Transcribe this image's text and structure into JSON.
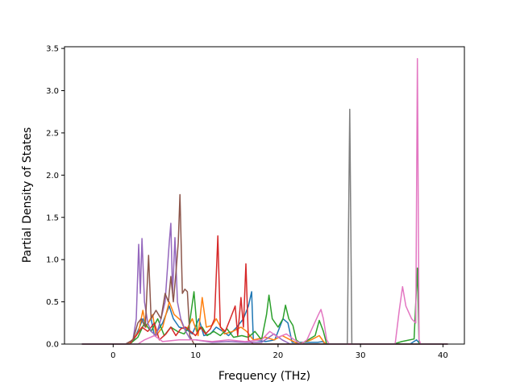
{
  "chart_data": {
    "type": "line",
    "title": "",
    "xlabel": "Frequency (THz)",
    "ylabel": "Partial Density of States",
    "xlim": [
      -5.9,
      42.6
    ],
    "ylim": [
      0,
      3.52
    ],
    "x_ticks": [
      0,
      10,
      20,
      30,
      40
    ],
    "y_ticks": [
      0.0,
      0.5,
      1.0,
      1.5,
      2.0,
      2.5,
      3.0,
      3.5
    ],
    "x_tick_labels": [
      "0",
      "10",
      "20",
      "30",
      "40"
    ],
    "y_tick_labels": [
      "0.0",
      "0.5",
      "1.0",
      "1.5",
      "2.0",
      "2.5",
      "3.0",
      "3.5"
    ],
    "grid": false,
    "legend": "none",
    "series": [
      {
        "color": "#1f77b4",
        "points": [
          [
            -3.8,
            0
          ],
          [
            1.5,
            0
          ],
          [
            2.5,
            0.05
          ],
          [
            3.2,
            0.2
          ],
          [
            3.6,
            0.3
          ],
          [
            4.0,
            0.22
          ],
          [
            4.6,
            0.3
          ],
          [
            5.0,
            0.1
          ],
          [
            6.0,
            0.25
          ],
          [
            6.8,
            0.45
          ],
          [
            7.3,
            0.3
          ],
          [
            8.0,
            0.2
          ],
          [
            8.8,
            0.18
          ],
          [
            9.6,
            0.12
          ],
          [
            10.4,
            0.3
          ],
          [
            11.0,
            0.1
          ],
          [
            11.8,
            0.12
          ],
          [
            12.5,
            0.2
          ],
          [
            13.3,
            0.15
          ],
          [
            14.0,
            0.1
          ],
          [
            15.0,
            0.2
          ],
          [
            15.8,
            0.3
          ],
          [
            16.4,
            0.45
          ],
          [
            16.8,
            0.62
          ],
          [
            17.0,
            0.05
          ],
          [
            18.5,
            0.03
          ],
          [
            19.6,
            0.05
          ],
          [
            20.6,
            0.3
          ],
          [
            21.2,
            0.25
          ],
          [
            21.7,
            0.02
          ],
          [
            24.8,
            0.02
          ],
          [
            25.4,
            0.03
          ],
          [
            25.8,
            0
          ],
          [
            36.0,
            0
          ],
          [
            36.8,
            0.05
          ],
          [
            37.2,
            0
          ],
          [
            40.6,
            0
          ]
        ]
      },
      {
        "color": "#ff7f0e",
        "points": [
          [
            -3.8,
            0
          ],
          [
            1.8,
            0
          ],
          [
            2.6,
            0.08
          ],
          [
            3.1,
            0.15
          ],
          [
            3.6,
            0.4
          ],
          [
            4.0,
            0.2
          ],
          [
            4.8,
            0.35
          ],
          [
            5.2,
            0.1
          ],
          [
            6.0,
            0.2
          ],
          [
            6.8,
            0.5
          ],
          [
            7.4,
            0.35
          ],
          [
            8.2,
            0.28
          ],
          [
            8.8,
            0.15
          ],
          [
            9.6,
            0.3
          ],
          [
            10.3,
            0.1
          ],
          [
            10.8,
            0.55
          ],
          [
            11.3,
            0.2
          ],
          [
            12.0,
            0.22
          ],
          [
            12.5,
            0.3
          ],
          [
            13.5,
            0.12
          ],
          [
            14.5,
            0.15
          ],
          [
            15.5,
            0.2
          ],
          [
            16.2,
            0.15
          ],
          [
            17.0,
            0.05
          ],
          [
            18.5,
            0.08
          ],
          [
            19.5,
            0.05
          ],
          [
            20.5,
            0.1
          ],
          [
            21.5,
            0.05
          ],
          [
            22.5,
            0
          ],
          [
            24.0,
            0.05
          ],
          [
            25.0,
            0.1
          ],
          [
            25.6,
            0.02
          ],
          [
            26.0,
            0
          ],
          [
            40.6,
            0
          ]
        ]
      },
      {
        "color": "#2ca02c",
        "points": [
          [
            -3.8,
            0
          ],
          [
            2.0,
            0
          ],
          [
            3.0,
            0.08
          ],
          [
            3.8,
            0.25
          ],
          [
            4.6,
            0.15
          ],
          [
            5.4,
            0.3
          ],
          [
            6.2,
            0.1
          ],
          [
            7.0,
            0.2
          ],
          [
            7.8,
            0.15
          ],
          [
            8.6,
            0.12
          ],
          [
            9.2,
            0.2
          ],
          [
            9.8,
            0.62
          ],
          [
            10.2,
            0.15
          ],
          [
            10.8,
            0.2
          ],
          [
            11.4,
            0.1
          ],
          [
            12.2,
            0.15
          ],
          [
            13.0,
            0.1
          ],
          [
            13.8,
            0.18
          ],
          [
            14.6,
            0.08
          ],
          [
            15.6,
            0.1
          ],
          [
            16.4,
            0.08
          ],
          [
            17.2,
            0.15
          ],
          [
            18.0,
            0.05
          ],
          [
            18.6,
            0.35
          ],
          [
            18.9,
            0.58
          ],
          [
            19.3,
            0.3
          ],
          [
            20.0,
            0.2
          ],
          [
            20.6,
            0.3
          ],
          [
            20.9,
            0.46
          ],
          [
            21.3,
            0.3
          ],
          [
            21.8,
            0.22
          ],
          [
            22.2,
            0.05
          ],
          [
            22.8,
            0
          ],
          [
            24.5,
            0.1
          ],
          [
            25.0,
            0.28
          ],
          [
            25.5,
            0.15
          ],
          [
            25.9,
            0
          ],
          [
            34.0,
            0
          ],
          [
            35.0,
            0.03
          ],
          [
            36.5,
            0.06
          ],
          [
            36.9,
            0.9
          ],
          [
            37.1,
            0
          ],
          [
            40.6,
            0
          ]
        ]
      },
      {
        "color": "#d62728",
        "points": [
          [
            -3.8,
            0
          ],
          [
            2.0,
            0
          ],
          [
            2.8,
            0.1
          ],
          [
            3.5,
            0.2
          ],
          [
            4.2,
            0.15
          ],
          [
            5.0,
            0.25
          ],
          [
            5.6,
            0.05
          ],
          [
            6.4,
            0.12
          ],
          [
            7.0,
            0.2
          ],
          [
            7.6,
            0.1
          ],
          [
            8.2,
            0.18
          ],
          [
            8.8,
            0.2
          ],
          [
            9.4,
            0.15
          ],
          [
            10.0,
            0.1
          ],
          [
            10.6,
            0.2
          ],
          [
            11.2,
            0.12
          ],
          [
            11.8,
            0.18
          ],
          [
            12.3,
            0.3
          ],
          [
            12.7,
            1.28
          ],
          [
            13.0,
            0.2
          ],
          [
            13.6,
            0.15
          ],
          [
            14.2,
            0.3
          ],
          [
            14.8,
            0.45
          ],
          [
            15.1,
            0.1
          ],
          [
            15.5,
            0.55
          ],
          [
            15.8,
            0.2
          ],
          [
            16.1,
            0.95
          ],
          [
            16.4,
            0.05
          ],
          [
            17.0,
            0
          ],
          [
            40.6,
            0
          ]
        ]
      },
      {
        "color": "#9467bd",
        "points": [
          [
            -3.8,
            0
          ],
          [
            1.5,
            0
          ],
          [
            2.4,
            0.05
          ],
          [
            2.8,
            0.3
          ],
          [
            3.1,
            1.18
          ],
          [
            3.3,
            0.6
          ],
          [
            3.5,
            1.25
          ],
          [
            3.8,
            0.5
          ],
          [
            4.2,
            0.25
          ],
          [
            4.6,
            0.15
          ],
          [
            5.2,
            0.1
          ],
          [
            5.8,
            0.3
          ],
          [
            6.3,
            0.5
          ],
          [
            6.8,
            1.2
          ],
          [
            7.0,
            1.43
          ],
          [
            7.2,
            0.6
          ],
          [
            7.5,
            1.26
          ],
          [
            7.8,
            0.5
          ],
          [
            8.2,
            0.3
          ],
          [
            8.8,
            0.15
          ],
          [
            9.4,
            0.05
          ],
          [
            10.0,
            0.05
          ],
          [
            12.0,
            0.02
          ],
          [
            14.0,
            0.03
          ],
          [
            16.0,
            0.02
          ],
          [
            18.0,
            0.02
          ],
          [
            19.5,
            0.12
          ],
          [
            20.5,
            0.05
          ],
          [
            21.5,
            0
          ],
          [
            40.6,
            0
          ]
        ]
      },
      {
        "color": "#8c564b",
        "points": [
          [
            -3.8,
            0
          ],
          [
            1.5,
            0
          ],
          [
            2.4,
            0.05
          ],
          [
            3.0,
            0.25
          ],
          [
            3.4,
            0.3
          ],
          [
            3.9,
            0.2
          ],
          [
            4.3,
            1.05
          ],
          [
            4.6,
            0.3
          ],
          [
            5.2,
            0.4
          ],
          [
            5.8,
            0.3
          ],
          [
            6.3,
            0.6
          ],
          [
            6.7,
            0.5
          ],
          [
            7.0,
            0.8
          ],
          [
            7.3,
            0.5
          ],
          [
            7.6,
            0.83
          ],
          [
            7.9,
            1.2
          ],
          [
            8.1,
            1.77
          ],
          [
            8.4,
            0.6
          ],
          [
            8.7,
            0.65
          ],
          [
            9.0,
            0.62
          ],
          [
            9.3,
            0.1
          ],
          [
            9.8,
            0
          ],
          [
            40.6,
            0
          ]
        ]
      },
      {
        "color": "#e377c2",
        "points": [
          [
            -3.8,
            0
          ],
          [
            3.0,
            0
          ],
          [
            3.8,
            0.05
          ],
          [
            5.0,
            0.1
          ],
          [
            6.0,
            0.03
          ],
          [
            8.0,
            0.05
          ],
          [
            10.0,
            0.05
          ],
          [
            12.0,
            0.03
          ],
          [
            14.0,
            0.05
          ],
          [
            16.0,
            0.03
          ],
          [
            18.0,
            0.05
          ],
          [
            19.0,
            0.15
          ],
          [
            20.0,
            0.08
          ],
          [
            21.0,
            0.12
          ],
          [
            22.0,
            0.05
          ],
          [
            22.8,
            0
          ],
          [
            23.5,
            0.05
          ],
          [
            24.2,
            0.2
          ],
          [
            24.9,
            0.35
          ],
          [
            25.2,
            0.41
          ],
          [
            25.5,
            0.3
          ],
          [
            25.9,
            0.05
          ],
          [
            26.2,
            0
          ],
          [
            34.2,
            0
          ],
          [
            34.7,
            0.4
          ],
          [
            35.1,
            0.68
          ],
          [
            35.5,
            0.45
          ],
          [
            36.2,
            0.3
          ],
          [
            36.7,
            0.25
          ],
          [
            36.9,
            3.38
          ],
          [
            37.1,
            0.05
          ],
          [
            37.3,
            0
          ],
          [
            40.6,
            0
          ]
        ]
      },
      {
        "color": "#7f7f7f",
        "points": [
          [
            -3.8,
            0
          ],
          [
            28.4,
            0
          ],
          [
            28.7,
            2.78
          ],
          [
            28.95,
            0
          ],
          [
            40.6,
            0
          ]
        ]
      }
    ]
  }
}
